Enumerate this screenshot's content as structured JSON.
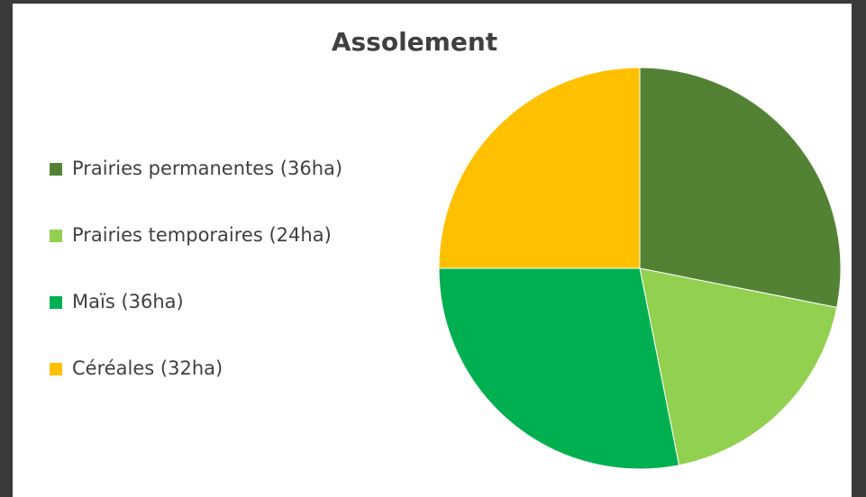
{
  "chart_data": {
    "type": "pie",
    "title": "Assolement",
    "categories": [
      "Prairies permanentes (36ha)",
      "Prairies temporaires (24ha)",
      "Maïs (36ha)",
      "Céréales (32ha)"
    ],
    "values": [
      36,
      24,
      36,
      32
    ],
    "colors": [
      "#548235",
      "#92d050",
      "#00b050",
      "#ffc000"
    ],
    "legend": "left"
  }
}
